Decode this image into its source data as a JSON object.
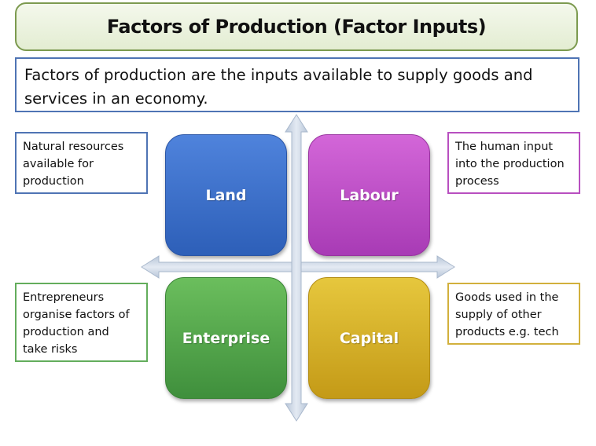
{
  "title": "Factors of Production (Factor Inputs)",
  "definition": "Factors of production are the inputs available to supply goods and services in an economy.",
  "factors": {
    "land": {
      "label": "Land",
      "note": "Natural resources\navailable for\nproduction",
      "color": "#3b6fcc"
    },
    "labour": {
      "label": "Labour",
      "note": "The human input\ninto the production\nprocess",
      "color": "#b74bc4"
    },
    "enterprise": {
      "label": "Enterprise",
      "note": "Entrepreneurs\norganise factors of\nproduction and\ntake risks",
      "color": "#53a64a"
    },
    "capital": {
      "label": "Capital",
      "note": "Goods used in the\nsupply of other\nproducts e.g. tech",
      "color": "#d6b126"
    }
  },
  "axis_color": "#c5d1e0"
}
